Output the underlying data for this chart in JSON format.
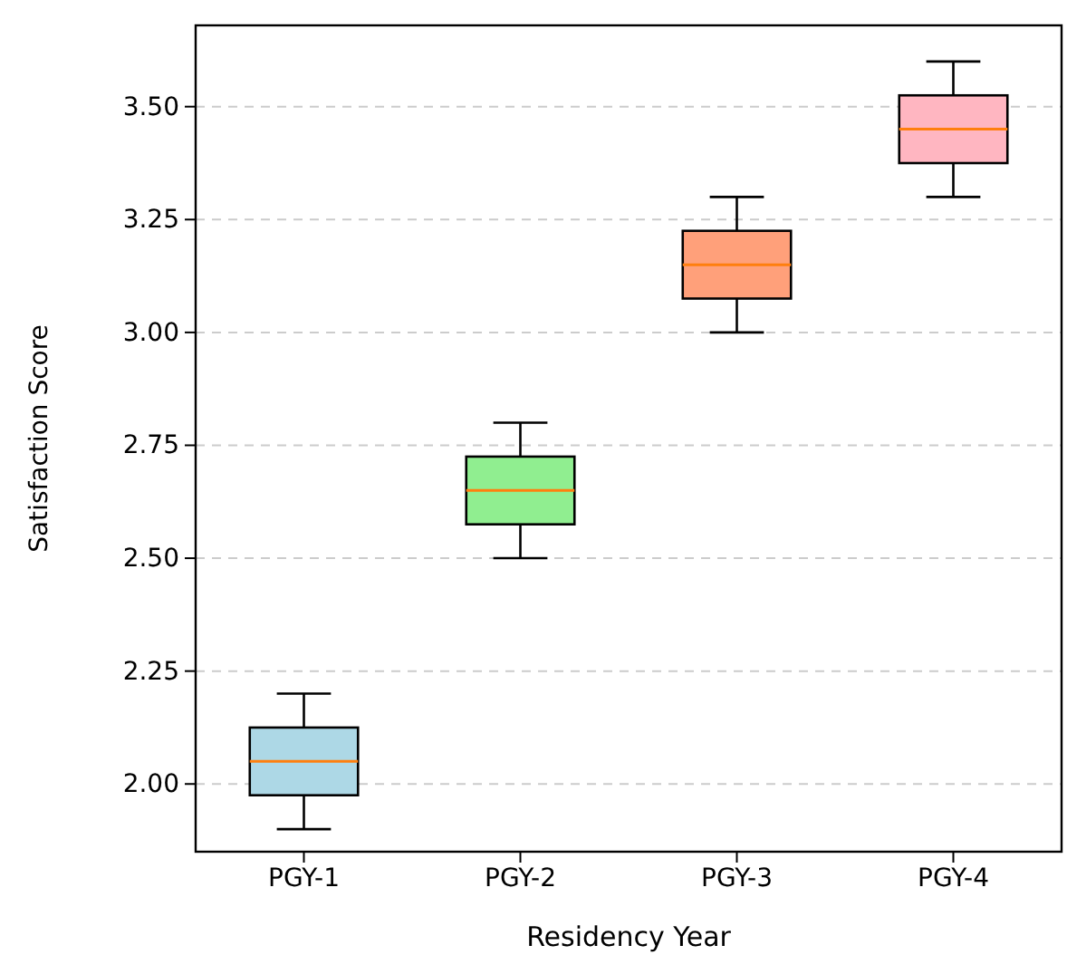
{
  "chart_data": {
    "type": "box",
    "xlabel": "Residency Year",
    "ylabel": "Satisfaction Score",
    "categories": [
      "PGY-1",
      "PGY-2",
      "PGY-3",
      "PGY-4"
    ],
    "colors": [
      "#add8e6",
      "#90ee90",
      "#ffa07a",
      "#ffb6c1"
    ],
    "boxes": [
      {
        "low": 1.9,
        "q1": 1.975,
        "median": 2.05,
        "q3": 2.125,
        "high": 2.2
      },
      {
        "low": 2.5,
        "q1": 2.575,
        "median": 2.65,
        "q3": 2.725,
        "high": 2.8
      },
      {
        "low": 3.0,
        "q1": 3.075,
        "median": 3.15,
        "q3": 3.225,
        "high": 3.3
      },
      {
        "low": 3.3,
        "q1": 3.375,
        "median": 3.45,
        "q3": 3.525,
        "high": 3.6
      }
    ],
    "ylim": [
      1.85,
      3.68
    ],
    "yticks": [
      {
        "value": 2.0,
        "label": "2.00"
      },
      {
        "value": 2.25,
        "label": "2.25"
      },
      {
        "value": 2.5,
        "label": "2.50"
      },
      {
        "value": 2.75,
        "label": "2.75"
      },
      {
        "value": 3.0,
        "label": "3.00"
      },
      {
        "value": 3.25,
        "label": "3.25"
      },
      {
        "value": 3.5,
        "label": "3.50"
      }
    ],
    "grid": "y"
  }
}
